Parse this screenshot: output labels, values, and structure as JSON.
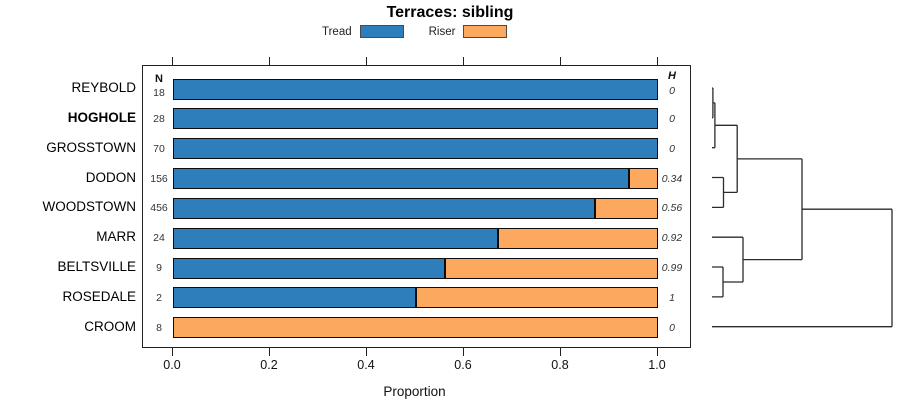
{
  "title": "Terraces: sibling",
  "legend": {
    "items": [
      {
        "label": "Tread",
        "color": "#2e7ebb"
      },
      {
        "label": "Riser",
        "color": "#fca85f"
      }
    ]
  },
  "columns": {
    "n_header": "N",
    "h_header": "H"
  },
  "axis": {
    "xlabel": "Proportion",
    "tick_labels": [
      "0.0",
      "0.2",
      "0.4",
      "0.6",
      "0.8",
      "1.0"
    ],
    "tick_values": [
      0,
      0.2,
      0.4,
      0.6,
      0.8,
      1.0
    ]
  },
  "chart_data": {
    "type": "bar",
    "orientation": "horizontal",
    "stacked": true,
    "title": "Terraces: sibling",
    "xlabel": "Proportion",
    "xlim": [
      0,
      1
    ],
    "grid": false,
    "legend_position": "top",
    "categories": [
      "REYBOLD",
      "HOGHOLE",
      "GROSSTOWN",
      "DODON",
      "WOODSTOWN",
      "MARR",
      "BELTSVILLE",
      "ROSEDALE",
      "CROOM"
    ],
    "bold_category": "HOGHOLE",
    "series": [
      {
        "name": "Tread",
        "color": "#2e7ebb",
        "values": [
          1,
          1,
          1,
          0.94,
          0.87,
          0.67,
          0.56,
          0.5,
          0
        ]
      },
      {
        "name": "Riser",
        "color": "#fca85f",
        "values": [
          0,
          0,
          0,
          0.06,
          0.13,
          0.33,
          0.44,
          0.5,
          1
        ]
      }
    ],
    "n_values": [
      "18",
      "28",
      "70",
      "156",
      "456",
      "24",
      "9",
      "2",
      "8"
    ],
    "h_values": [
      "0",
      "0",
      "0",
      "0.34",
      "0.56",
      "0.92",
      "0.99",
      "1",
      "0"
    ],
    "bar_border_color": "#0d0d0d",
    "dendrogram": {
      "line_color": "#2b2b2b",
      "leaves": [
        "REYBOLD",
        "HOGHOLE",
        "GROSSTOWN",
        "DODON",
        "WOODSTOWN",
        "MARR",
        "BELTSVILLE",
        "ROSEDALE",
        "CROOM"
      ],
      "merges": [
        {
          "a": "REYBOLD",
          "b": "HOGHOLE",
          "h": 0.005
        },
        {
          "a": "@0",
          "b": "GROSSTOWN",
          "h": 0.016
        },
        {
          "a": "DODON",
          "b": "WOODSTOWN",
          "h": 0.064
        },
        {
          "a": "@1",
          "b": "@2",
          "h": 0.14
        },
        {
          "a": "BELTSVILLE",
          "b": "ROSEDALE",
          "h": 0.061
        },
        {
          "a": "MARR",
          "b": "@4",
          "h": 0.172
        },
        {
          "a": "@3",
          "b": "@5",
          "h": 0.5
        },
        {
          "a": "@6",
          "b": "CROOM",
          "h": 1.0
        }
      ]
    }
  }
}
